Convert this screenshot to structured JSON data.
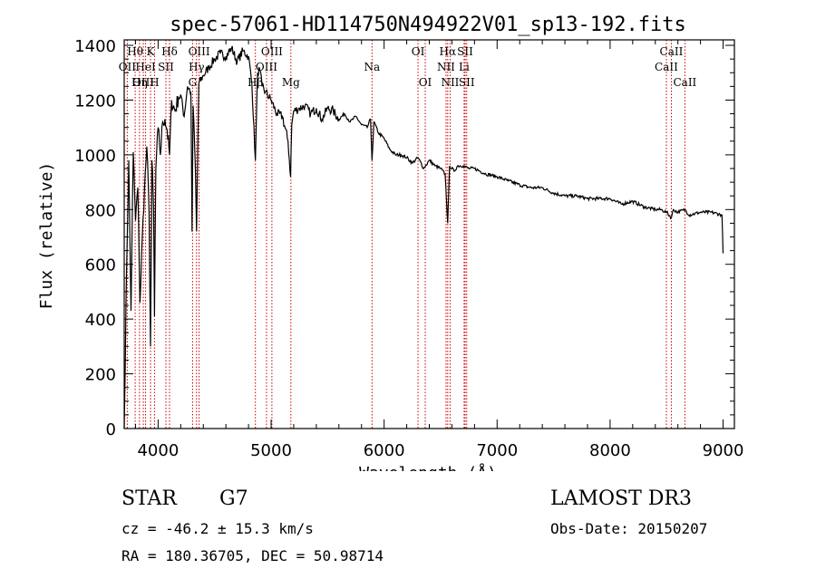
{
  "chart_data": {
    "type": "line",
    "title": "spec-57061-HD114750N494922V01_sp13-192.fits",
    "xlabel": "Wavelength (Å)",
    "ylabel": "Flux (relative)",
    "xlim": [
      3700,
      9100
    ],
    "ylim": [
      0,
      1420
    ],
    "xticks": [
      4000,
      5000,
      6000,
      7000,
      8000,
      9000
    ],
    "yticks": [
      0,
      200,
      400,
      600,
      800,
      1000,
      1200,
      1400
    ],
    "series": [
      {
        "name": "flux",
        "x": [
          3700,
          3705,
          3720,
          3740,
          3760,
          3780,
          3800,
          3820,
          3840,
          3860,
          3880,
          3900,
          3920,
          3933,
          3945,
          3960,
          3968,
          3980,
          4000,
          4020,
          4040,
          4060,
          4080,
          4101,
          4120,
          4150,
          4180,
          4200,
          4230,
          4260,
          4290,
          4300,
          4310,
          4330,
          4340,
          4360,
          4400,
          4450,
          4500,
          4550,
          4600,
          4650,
          4700,
          4750,
          4800,
          4830,
          4861,
          4880,
          4900,
          4920,
          4950,
          5000,
          5050,
          5100,
          5150,
          5172,
          5183,
          5200,
          5250,
          5300,
          5350,
          5400,
          5450,
          5500,
          5550,
          5600,
          5650,
          5700,
          5750,
          5800,
          5850,
          5880,
          5893,
          5910,
          5950,
          6000,
          6050,
          6100,
          6150,
          6200,
          6250,
          6300,
          6350,
          6400,
          6450,
          6500,
          6540,
          6563,
          6580,
          6620,
          6650,
          6700,
          6750,
          6800,
          6900,
          7000,
          7100,
          7200,
          7300,
          7400,
          7500,
          7600,
          7700,
          7800,
          7900,
          8000,
          8100,
          8200,
          8300,
          8400,
          8450,
          8500,
          8542,
          8560,
          8600,
          8662,
          8700,
          8800,
          8900,
          8990,
          9000
        ],
        "values": [
          0,
          120,
          560,
          980,
          430,
          1010,
          760,
          880,
          460,
          700,
          880,
          1030,
          790,
          300,
          980,
          800,
          410,
          950,
          1100,
          1000,
          1120,
          1130,
          1090,
          1000,
          1200,
          1160,
          1210,
          1220,
          1140,
          1250,
          1230,
          720,
          1180,
          950,
          720,
          1260,
          1290,
          1320,
          1350,
          1370,
          1360,
          1390,
          1340,
          1380,
          1360,
          1260,
          980,
          1300,
          1310,
          1250,
          1230,
          1200,
          1150,
          1140,
          1050,
          920,
          1110,
          1160,
          1170,
          1180,
          1150,
          1170,
          1130,
          1170,
          1160,
          1130,
          1150,
          1120,
          1140,
          1110,
          1100,
          1130,
          980,
          1120,
          1080,
          1060,
          1020,
          1000,
          1000,
          990,
          970,
          990,
          950,
          980,
          960,
          950,
          930,
          750,
          960,
          940,
          960,
          960,
          950,
          950,
          930,
          920,
          905,
          890,
          880,
          880,
          860,
          850,
          850,
          840,
          840,
          840,
          820,
          830,
          810,
          800,
          800,
          790,
          770,
          800,
          790,
          800,
          780,
          790,
          790,
          780,
          640
        ]
      }
    ],
    "spectral_lines": [
      {
        "label": "Hθ",
        "x": 3797,
        "row": 1
      },
      {
        "label": "K",
        "x": 3933,
        "row": 1
      },
      {
        "label": "Hδ",
        "x": 4101,
        "row": 1
      },
      {
        "label": "OII",
        "x": 3727,
        "row": 2
      },
      {
        "label": "HeI",
        "x": 3889,
        "row": 2
      },
      {
        "label": "SII",
        "x": 4069,
        "row": 2
      },
      {
        "label": "OIII",
        "x": 3869,
        "row": 3
      },
      {
        "label": "Hη",
        "x": 3835,
        "row": 3
      },
      {
        "label": "H",
        "x": 3968,
        "row": 3
      },
      {
        "label": "OIII",
        "x": 4363,
        "row": 1
      },
      {
        "label": "Hγ",
        "x": 4340,
        "row": 2
      },
      {
        "label": "G",
        "x": 4305,
        "row": 3
      },
      {
        "label": "OIII",
        "x": 5007,
        "row": 1
      },
      {
        "label": "OIII",
        "x": 4959,
        "row": 2
      },
      {
        "label": "Hβ",
        "x": 4861,
        "row": 3
      },
      {
        "label": "Mg",
        "x": 5175,
        "row": 3
      },
      {
        "label": "Na",
        "x": 5893,
        "row": 2
      },
      {
        "label": "OI",
        "x": 6300,
        "row": 1
      },
      {
        "label": "OI",
        "x": 6364,
        "row": 3
      },
      {
        "label": "Hα",
        "x": 6563,
        "row": 1
      },
      {
        "label": "SII",
        "x": 6717,
        "row": 1
      },
      {
        "label": "NII",
        "x": 6548,
        "row": 2
      },
      {
        "label": "Li",
        "x": 6708,
        "row": 2
      },
      {
        "label": "NII",
        "x": 6584,
        "row": 3
      },
      {
        "label": "SII",
        "x": 6731,
        "row": 3
      },
      {
        "label": "CaII",
        "x": 8542,
        "row": 1
      },
      {
        "label": "CaII",
        "x": 8498,
        "row": 2
      },
      {
        "label": "CaII",
        "x": 8662,
        "row": 3
      }
    ]
  },
  "info": {
    "object_class": "STAR",
    "subclass": "G7",
    "survey": "LAMOST DR3",
    "redshift": "cz = -46.2 ± 15.3 km/s",
    "obs_date": "Obs-Date: 20150207",
    "coords": "RA = 180.36705, DEC =  50.98714"
  }
}
